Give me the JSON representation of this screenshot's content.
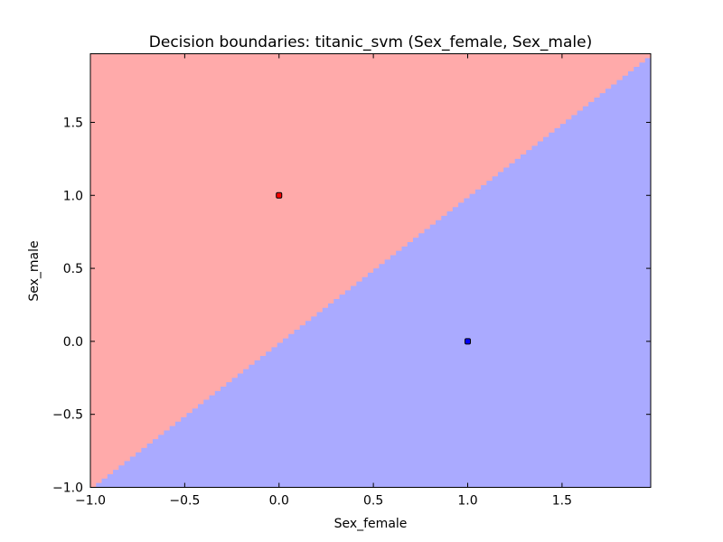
{
  "chart_data": {
    "type": "scatter",
    "title": "Decision boundaries: titanic_svm (Sex_female, Sex_male)",
    "xlabel": "Sex_female",
    "ylabel": "Sex_male",
    "xlim": [
      -1.0,
      1.97
    ],
    "ylim": [
      -1.0,
      1.97
    ],
    "xticks": [
      -1.0,
      -0.5,
      0.0,
      0.5,
      1.0,
      1.5
    ],
    "yticks": [
      -1.0,
      -0.5,
      0.0,
      0.5,
      1.0,
      1.5
    ],
    "xtick_labels": [
      "−1.0",
      "−0.5",
      "0.0",
      "0.5",
      "1.0",
      "1.5"
    ],
    "ytick_labels": [
      "−1.0",
      "−0.5",
      "0.0",
      "0.5",
      "1.0",
      "1.5"
    ],
    "grid": false,
    "decision_boundary": {
      "slope": 1.0,
      "intercept": 0.0,
      "step": 0.03
    },
    "regions": [
      {
        "side": "upper-left",
        "color": "#ffaaaa"
      },
      {
        "side": "lower-right",
        "color": "#aaaaff"
      }
    ],
    "points": [
      {
        "x": 0.0,
        "y": 1.0,
        "color": "#ff0000"
      },
      {
        "x": 1.0,
        "y": 0.0,
        "color": "#0000ff"
      }
    ]
  }
}
